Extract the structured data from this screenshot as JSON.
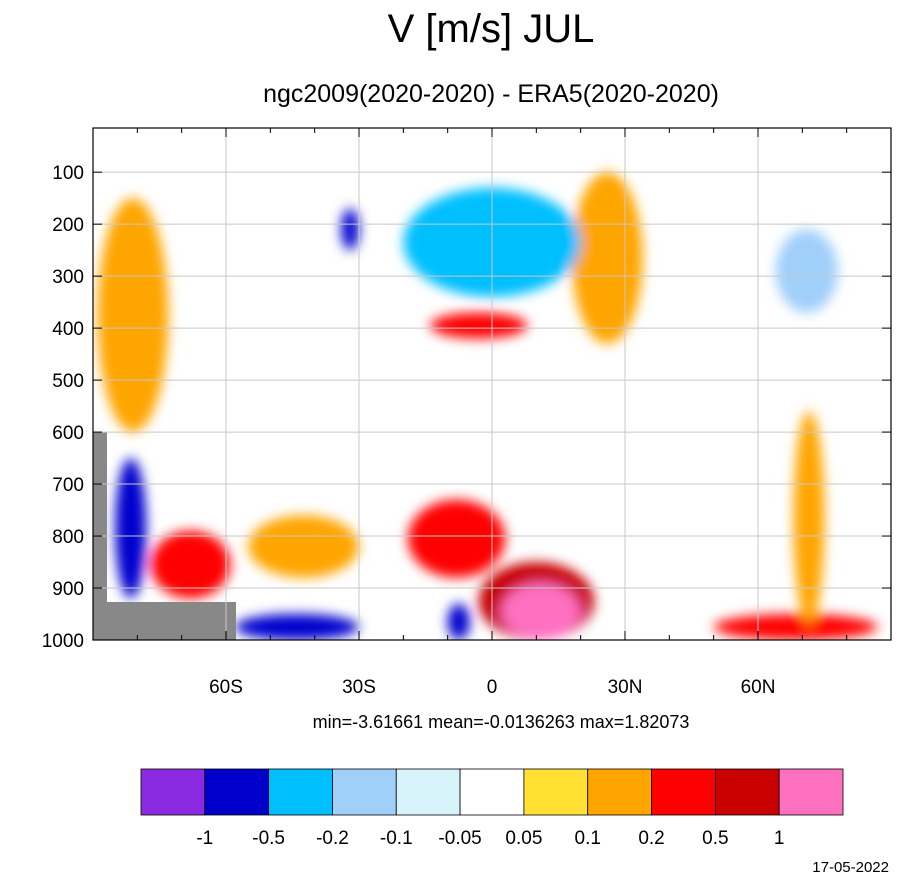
{
  "chart_data": {
    "type": "heatmap",
    "title": "V [m/s] JUL",
    "subtitle": "ngc2009(2020-2020) - ERA5(2020-2020)",
    "xlabel": "",
    "ylabel": "",
    "x_ticks": [
      "60S",
      "30S",
      "0",
      "30N",
      "60N"
    ],
    "x_tick_values": [
      -60,
      -30,
      0,
      30,
      60
    ],
    "xlim": [
      -90,
      90
    ],
    "y_ticks": [
      "100",
      "200",
      "300",
      "400",
      "500",
      "600",
      "700",
      "800",
      "900",
      "1000"
    ],
    "y_tick_values": [
      100,
      200,
      300,
      400,
      500,
      600,
      700,
      800,
      900,
      1000
    ],
    "ylim": [
      15,
      1000
    ],
    "y_inverted": true,
    "grid": true,
    "stats_text": "min=-3.61661   mean=-0.0136263   max=1.82073",
    "colorbar": {
      "levels": [
        "-1",
        "-0.5",
        "-0.2",
        "-0.1",
        "-0.05",
        "0.05",
        "0.1",
        "0.2",
        "0.5",
        "1"
      ],
      "colors": [
        "#8a2be2",
        "#0000cd",
        "#00bfff",
        "#a0cffa",
        "#d8f4fb",
        "#ffffff",
        "#ffe033",
        "#ffa500",
        "#ff0000",
        "#c80000",
        "#ff70c0"
      ]
    },
    "features": [
      {
        "value": 0.35,
        "lat_range": [
          -87,
          -77
        ],
        "p_range": [
          220,
          510
        ]
      },
      {
        "value": 0.15,
        "lat_range": [
          -89,
          -73
        ],
        "p_range": [
          150,
          600
        ]
      },
      {
        "value": 0.5,
        "lat_range": [
          20,
          30
        ],
        "p_range": [
          130,
          330
        ]
      },
      {
        "value": 0.15,
        "lat_range": [
          18,
          34
        ],
        "p_range": [
          100,
          430
        ]
      },
      {
        "value": -0.7,
        "lat_range": [
          3,
          19
        ],
        "p_range": [
          170,
          290
        ]
      },
      {
        "value": -0.25,
        "lat_range": [
          -20,
          20
        ],
        "p_range": [
          130,
          340
        ]
      },
      {
        "value": -0.7,
        "lat_range": [
          -34,
          -30
        ],
        "p_range": [
          170,
          250
        ]
      },
      {
        "value": 0.3,
        "lat_range": [
          -14,
          8
        ],
        "p_range": [
          370,
          420
        ]
      },
      {
        "value": 0.3,
        "lat_range": [
          -19,
          3
        ],
        "p_range": [
          730,
          880
        ]
      },
      {
        "value": 0.6,
        "lat_range": [
          -3,
          23
        ],
        "p_range": [
          850,
          1000
        ]
      },
      {
        "value": 1.2,
        "lat_range": [
          2,
          20
        ],
        "p_range": [
          890,
          1000
        ]
      },
      {
        "value": 0.15,
        "lat_range": [
          -55,
          -30
        ],
        "p_range": [
          760,
          880
        ]
      },
      {
        "value": -0.6,
        "lat_range": [
          -58,
          -30
        ],
        "p_range": [
          950,
          1000
        ]
      },
      {
        "value": -0.7,
        "lat_range": [
          -10,
          -5
        ],
        "p_range": [
          930,
          1000
        ]
      },
      {
        "value": -0.6,
        "lat_range": [
          -85,
          -78
        ],
        "p_range": [
          650,
          920
        ]
      },
      {
        "value": 0.4,
        "lat_range": [
          -77,
          -59
        ],
        "p_range": [
          790,
          920
        ]
      },
      {
        "value": -0.15,
        "lat_range": [
          64,
          78
        ],
        "p_range": [
          210,
          370
        ]
      },
      {
        "value": 0.4,
        "lat_range": [
          50,
          87
        ],
        "p_range": [
          950,
          1000
        ]
      },
      {
        "value": 0.15,
        "lat_range": [
          68,
          75
        ],
        "p_range": [
          560,
          970
        ]
      }
    ],
    "footer_date": "17-05-2022"
  }
}
